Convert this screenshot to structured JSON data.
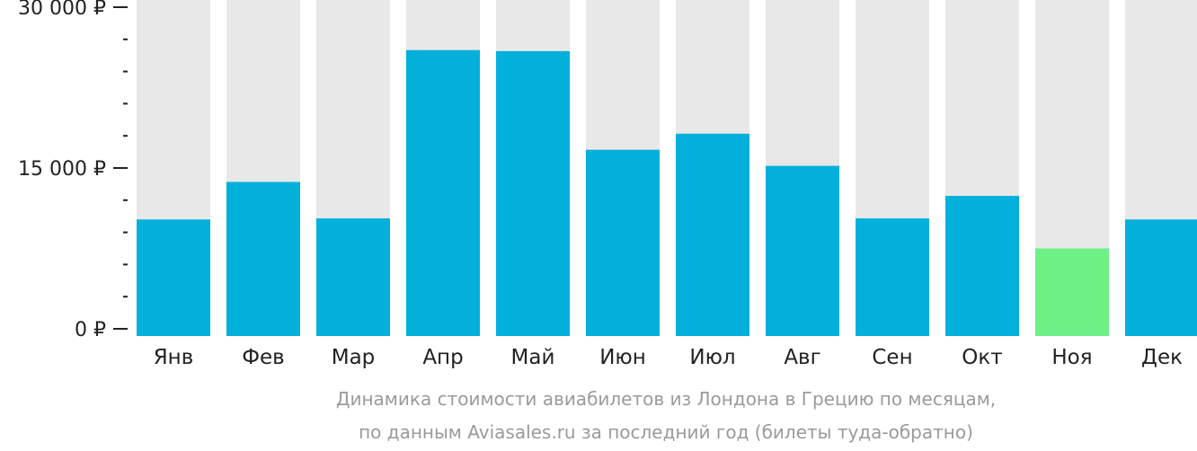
{
  "chart_data": {
    "type": "bar",
    "categories": [
      "Янв",
      "Фев",
      "Мар",
      "Апр",
      "Май",
      "Июн",
      "Июл",
      "Авг",
      "Сен",
      "Окт",
      "Ноя",
      "Дек"
    ],
    "values": [
      10200,
      13700,
      10300,
      26000,
      25900,
      16700,
      18200,
      15200,
      10300,
      12400,
      7500,
      10200
    ],
    "highlight_index": 10,
    "ylim": [
      0,
      30000
    ],
    "yticks": [
      {
        "value": 0,
        "label": "0 ₽"
      },
      {
        "value": 15000,
        "label": "15 000 ₽"
      },
      {
        "value": 30000,
        "label": "30 000 ₽"
      }
    ],
    "minor_ticks_per_major": 5,
    "grid": false,
    "colors": {
      "bar": "#03b0dc",
      "highlight": "#6ef086",
      "track": "#e8e8e8",
      "tick": "#222222"
    },
    "caption": [
      "Динамика стоимости авиабилетов из Лондона в Грецию по месяцам,",
      "по данным Aviasales.ru за последний год (билеты туда-обратно)"
    ]
  }
}
